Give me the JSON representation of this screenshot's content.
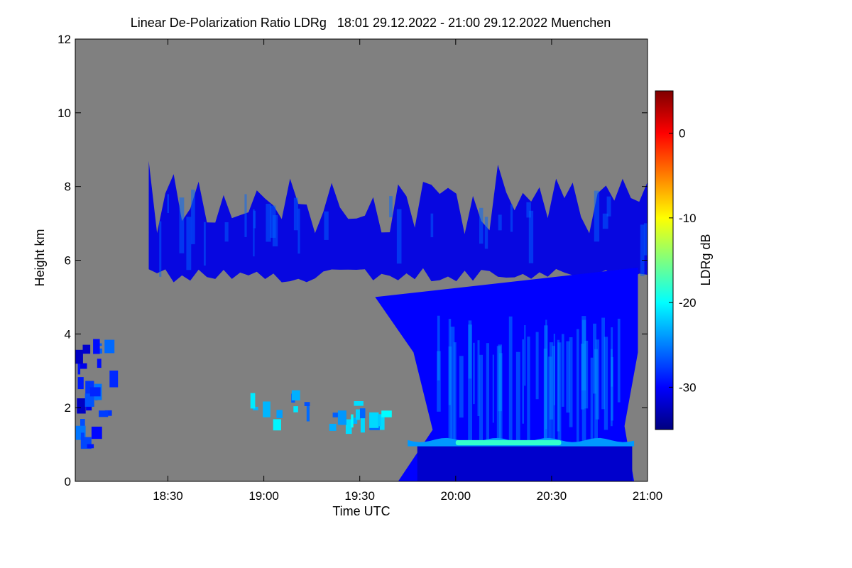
{
  "chart_data": {
    "type": "heatmap",
    "title": "Linear De-Polarization Ratio LDRg   18:01 29.12.2022 - 21:00 29.12.2022 Muenchen",
    "xlabel": "Time UTC",
    "ylabel": "Height km",
    "colorbar_label": "LDRg dB",
    "x_range_hours": [
      18.017,
      21.0
    ],
    "x_ticks": [
      {
        "value": 18.5,
        "label": "18:30"
      },
      {
        "value": 19.0,
        "label": "19:00"
      },
      {
        "value": 19.5,
        "label": "19:30"
      },
      {
        "value": 20.0,
        "label": "20:00"
      },
      {
        "value": 20.5,
        "label": "20:30"
      },
      {
        "value": 21.0,
        "label": "21:00"
      }
    ],
    "y_range_km": [
      0,
      12
    ],
    "y_ticks": [
      {
        "value": 0,
        "label": "0"
      },
      {
        "value": 2,
        "label": "2"
      },
      {
        "value": 4,
        "label": "4"
      },
      {
        "value": 6,
        "label": "6"
      },
      {
        "value": 8,
        "label": "8"
      },
      {
        "value": 10,
        "label": "10"
      },
      {
        "value": 12,
        "label": "12"
      }
    ],
    "colorbar_range_db": [
      -35,
      5
    ],
    "colorbar_ticks": [
      {
        "value": 0,
        "label": "0"
      },
      {
        "value": -10,
        "label": "-10"
      },
      {
        "value": -20,
        "label": "-20"
      },
      {
        "value": -30,
        "label": "-30"
      }
    ],
    "colormap": [
      "#00007f",
      "#0000ff",
      "#007fff",
      "#00ffff",
      "#7fff7f",
      "#ffff00",
      "#ff7f00",
      "#ff0000",
      "#7f0000"
    ],
    "no_data_color": "#808080",
    "features": [
      {
        "name": "upper cirrus layer",
        "time_start": 18.4,
        "time_end": 21.0,
        "base_km": 5.4,
        "top_km": 8.5,
        "ldr_db": -31
      },
      {
        "name": "descending fall streaks",
        "time_start": 19.7,
        "time_end": 20.95,
        "base_km": 0.0,
        "top_km": 6.0,
        "ldr_db": -30
      },
      {
        "name": "melting layer",
        "time_start": 19.75,
        "time_end": 20.93,
        "base_km": 0.95,
        "top_km": 1.2,
        "ldr_db": -18
      },
      {
        "name": "low cloud patches",
        "time_start": 18.9,
        "time_end": 19.7,
        "base_km": 1.5,
        "top_km": 2.5,
        "ldr_db": -24
      },
      {
        "name": "early low cloud",
        "time_start": 18.017,
        "time_end": 18.2,
        "base_km": 1.0,
        "top_km": 3.9,
        "ldr_db": -29
      }
    ]
  }
}
